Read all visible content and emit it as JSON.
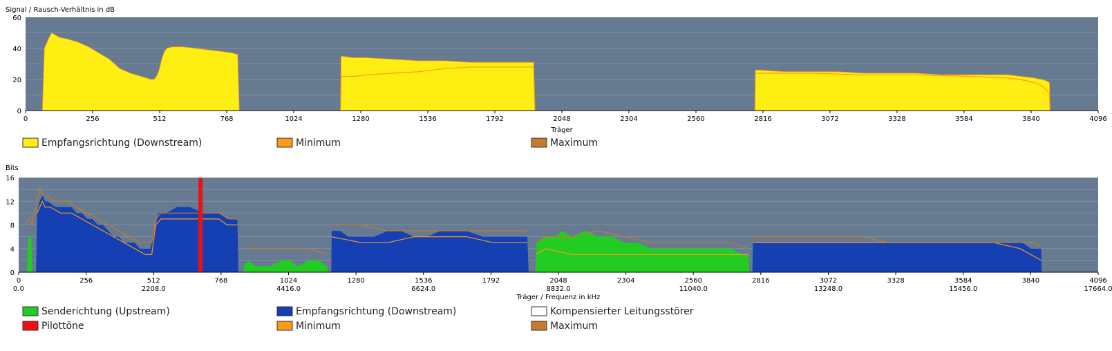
{
  "colors": {
    "plot_bg": "#667a91",
    "grid": "#8291a3",
    "downstream_snr": "#ffee11",
    "upstream": "#22cc22",
    "downstream_bits": "#1440b4",
    "pilot": "#ee1111",
    "minimum": "#ff9a14",
    "maximum": "#c87a2c",
    "legend_white": "#ffffff"
  },
  "chart_data": [
    {
      "type": "area",
      "title": "",
      "ylabel": "Signal / Rausch-Verhältnis in dB",
      "xlabel": "Träger",
      "xlim": [
        0,
        4096
      ],
      "ylim": [
        0,
        60
      ],
      "y_ticks": [
        "0",
        "20",
        "40",
        "60"
      ],
      "x_ticks": [
        "0",
        "256",
        "512",
        "768",
        "1024",
        "1280",
        "1536",
        "1792",
        "2048",
        "2304",
        "2560",
        "2816",
        "3072",
        "3328",
        "3584",
        "3840",
        "4096"
      ],
      "grid": true,
      "legend": [
        {
          "label": "Empfangsrichtung (Downstream)",
          "color_key": "downstream_snr"
        },
        {
          "label": "Minimum",
          "color_key": "minimum"
        },
        {
          "label": "Maximum",
          "color_key": "maximum"
        }
      ],
      "series": [
        {
          "name": "Empfangsrichtung (Downstream)",
          "segments": [
            {
              "x": [
                64,
                72,
                90,
                100,
                110,
                130,
                160,
                200,
                240,
                280,
                320,
                360,
                400,
                440,
                480,
                490,
                500,
                510,
                520,
                530,
                540,
                560,
                600,
                650,
                700,
                750,
                790,
                810,
                816
              ],
              "y": [
                0,
                40,
                47,
                50,
                49,
                47,
                46,
                44,
                41,
                37,
                33,
                27,
                24,
                22,
                20,
                20,
                22,
                26,
                33,
                38,
                40,
                41,
                41,
                40,
                39,
                38,
                37,
                36,
                0
              ]
            },
            {
              "x": [
                1203,
                1205,
                1250,
                1300,
                1400,
                1500,
                1600,
                1700,
                1780,
                1940,
                1945
              ],
              "y": [
                0,
                35,
                34,
                34,
                33,
                32,
                32,
                31,
                31,
                31,
                0
              ]
            },
            {
              "x": [
                2785,
                2787,
                2800,
                2900,
                3000,
                3100,
                3200,
                3300,
                3400,
                3500,
                3600,
                3700,
                3750,
                3800,
                3850,
                3880,
                3900,
                3910,
                3912
              ],
              "y": [
                0,
                26,
                26,
                25,
                25,
                25,
                24,
                24,
                24,
                23,
                23,
                23,
                23,
                22,
                21,
                20,
                19,
                18,
                0
              ]
            }
          ]
        },
        {
          "name": "Minimum",
          "segments": [
            {
              "x": [
                1203,
                1205,
                1260,
                1300,
                1400,
                1500,
                1600,
                1700,
                1800,
                1940,
                1945
              ],
              "y": [
                0,
                22,
                22,
                23,
                24,
                25,
                27,
                28,
                28,
                28,
                0
              ]
            },
            {
              "x": [
                2785,
                2787,
                2800,
                3000,
                3200,
                3400,
                3600,
                3750,
                3800,
                3850,
                3880,
                3900,
                3910,
                3912
              ],
              "y": [
                0,
                24,
                24,
                24,
                23,
                23,
                22,
                21,
                20,
                18,
                16,
                13,
                11,
                0
              ]
            }
          ]
        }
      ]
    },
    {
      "type": "area",
      "title": "",
      "ylabel": "Bits",
      "xlabel": "Träger / Frequenz in kHz",
      "xlim": [
        0,
        4096
      ],
      "ylim": [
        0,
        16
      ],
      "y_ticks": [
        "0",
        "4",
        "8",
        "12",
        "16"
      ],
      "x_ticks": [
        "0",
        "256",
        "512",
        "768",
        "1024",
        "1280",
        "1536",
        "1792",
        "2048",
        "2304",
        "2560",
        "2816",
        "3072",
        "3328",
        "3584",
        "3840",
        "4096"
      ],
      "x_ticks_2": [
        "0.0",
        "2208.0",
        "4416.0",
        "6624.0",
        "8832.0",
        "11040.0",
        "13248.0",
        "15456.0",
        "17664.0"
      ],
      "grid": true,
      "pilot_tone_x": 690,
      "legend": [
        {
          "label": "Senderichtung (Upstream)",
          "color_key": "upstream"
        },
        {
          "label": "Empfangsrichtung (Downstream)",
          "color_key": "downstream_bits"
        },
        {
          "label": "Kompensierter Leitungsstörer",
          "color_key": "legend_white"
        },
        {
          "label": "Pilottöne",
          "color_key": "pilot"
        },
        {
          "label": "Minimum",
          "color_key": "minimum"
        },
        {
          "label": "Maximum",
          "color_key": "maximum"
        }
      ],
      "series": [
        {
          "name": "Senderichtung (Upstream)",
          "segments": [
            {
              "x": [
                32,
                34,
                38,
                48,
                52
              ],
              "y": [
                0,
                4,
                6,
                6,
                0
              ]
            },
            {
              "x": [
                852,
                856,
                870,
                900,
                950,
                1000,
                1030,
                1060,
                1100,
                1140,
                1170,
                1174
              ],
              "y": [
                0,
                1,
                2,
                1,
                1,
                2,
                2,
                1,
                2,
                2,
                1,
                0
              ]
            },
            {
              "x": [
                1960,
                1965,
                2000,
                2040,
                2060,
                2100,
                2150,
                2200,
                2250,
                2300,
                2350,
                2400,
                2500,
                2600,
                2700,
                2750,
                2770,
                2772
              ],
              "y": [
                0,
                5,
                6,
                6,
                7,
                6,
                7,
                6,
                6,
                5,
                5,
                4,
                4,
                4,
                4,
                3,
                3,
                0
              ]
            }
          ]
        },
        {
          "name": "Empfangsrichtung (Downstream)",
          "segments": [
            {
              "x": [
                66,
                70,
                80,
                90,
                100,
                110,
                140,
                180,
                200,
                220,
                240,
                260,
                280,
                300,
                320,
                340,
                360,
                380,
                400,
                420,
                440,
                460,
                480,
                500,
                510,
                520,
                530,
                540,
                560,
                600,
                650,
                700,
                760,
                790,
                810,
                830,
                834
              ],
              "y": [
                0,
                10,
                12,
                13,
                12,
                12,
                11,
                11,
                11,
                10,
                10,
                9,
                9,
                8,
                8,
                7,
                6,
                6,
                5,
                5,
                5,
                4,
                4,
                4,
                6,
                8,
                10,
                10,
                10,
                11,
                11,
                10,
                10,
                9,
                9,
                9,
                0
              ]
            },
            {
              "x": [
                1186,
                1188,
                1220,
                1250,
                1260,
                1300,
                1350,
                1400,
                1450,
                1500,
                1550,
                1600,
                1650,
                1700,
                1760,
                1800,
                1900,
                1930,
                1935
              ],
              "y": [
                0,
                7,
                7,
                6,
                6,
                6,
                6,
                7,
                7,
                6,
                6,
                7,
                7,
                7,
                6,
                6,
                6,
                6,
                0
              ]
            },
            {
              "x": [
                2784,
                2786,
                2900,
                3000,
                3100,
                3200,
                3300,
                3400,
                3500,
                3600,
                3700,
                3750,
                3780,
                3810,
                3840,
                3860,
                3880,
                3882
              ],
              "y": [
                0,
                5,
                5,
                5,
                5,
                5,
                5,
                5,
                5,
                5,
                5,
                5,
                5,
                5,
                4,
                4,
                4,
                0
              ]
            }
          ]
        },
        {
          "name": "Minimum",
          "segments": [
            {
              "x": [
                70,
                80,
                90,
                100,
                120,
                160,
                200,
                240,
                280,
                320,
                360,
                400,
                440,
                480,
                500,
                505,
                520,
                540,
                560,
                600,
                650,
                700,
                760,
                790,
                810,
                830
              ],
              "y": [
                10,
                11,
                12,
                11,
                11,
                10,
                10,
                9,
                8,
                7,
                6,
                5,
                4,
                3,
                3,
                3,
                8,
                9,
                9,
                9,
                9,
                9,
                9,
                8,
                8,
                8
              ]
            },
            {
              "x": [
                1188,
                1300,
                1400,
                1500,
                1600,
                1700,
                1800,
                1930
              ],
              "y": [
                6,
                5,
                5,
                6,
                6,
                6,
                5,
                5
              ]
            },
            {
              "x": [
                1965,
                2000,
                2100,
                2200,
                2300,
                2400,
                2500,
                2700,
                2770
              ],
              "y": [
                3,
                4,
                3,
                3,
                3,
                3,
                3,
                3,
                3
              ]
            },
            {
              "x": [
                2786,
                2900,
                3100,
                3300,
                3500,
                3700,
                3800,
                3840,
                3880
              ],
              "y": [
                5,
                5,
                5,
                5,
                5,
                5,
                4,
                3,
                2
              ]
            }
          ]
        },
        {
          "name": "Maximum",
          "segments": [
            {
              "x": [
                30,
                36,
                44,
                50,
                60,
                70,
                80,
                90,
                100,
                140,
                180,
                220,
                260,
                300,
                340,
                380,
                420,
                460,
                500,
                505,
                520,
                540,
                600,
                650,
                700,
                760,
                800,
                830
              ],
              "y": [
                8,
                9,
                9,
                8,
                10,
                12,
                14,
                13,
                13,
                12,
                12,
                11,
                10,
                9,
                8,
                7,
                6,
                5,
                5,
                5,
                9,
                10,
                10,
                10,
                10,
                10,
                9,
                9
              ]
            },
            {
              "x": [
                860,
                900,
                1000,
                1100,
                1170
              ],
              "y": [
                4,
                4,
                4,
                4,
                3
              ]
            },
            {
              "x": [
                1188,
                1220,
                1300,
                1400,
                1500,
                1600,
                1700,
                1800,
                1930
              ],
              "y": [
                8,
                8,
                8,
                7,
                7,
                7,
                7,
                7,
                7
              ]
            },
            {
              "x": [
                1965,
                2000,
                2100,
                2200,
                2300,
                2400,
                2500,
                2600,
                2700,
                2770
              ],
              "y": [
                5,
                6,
                6,
                7,
                6,
                5,
                5,
                5,
                5,
                4
              ]
            },
            {
              "x": [
                2786,
                2900,
                3000,
                3100,
                3200,
                3300,
                3400,
                3500,
                3600,
                3700,
                3800,
                3860,
                3880
              ],
              "y": [
                6,
                6,
                6,
                6,
                6,
                5,
                5,
                5,
                5,
                5,
                5,
                5,
                4
              ]
            }
          ]
        }
      ]
    }
  ]
}
